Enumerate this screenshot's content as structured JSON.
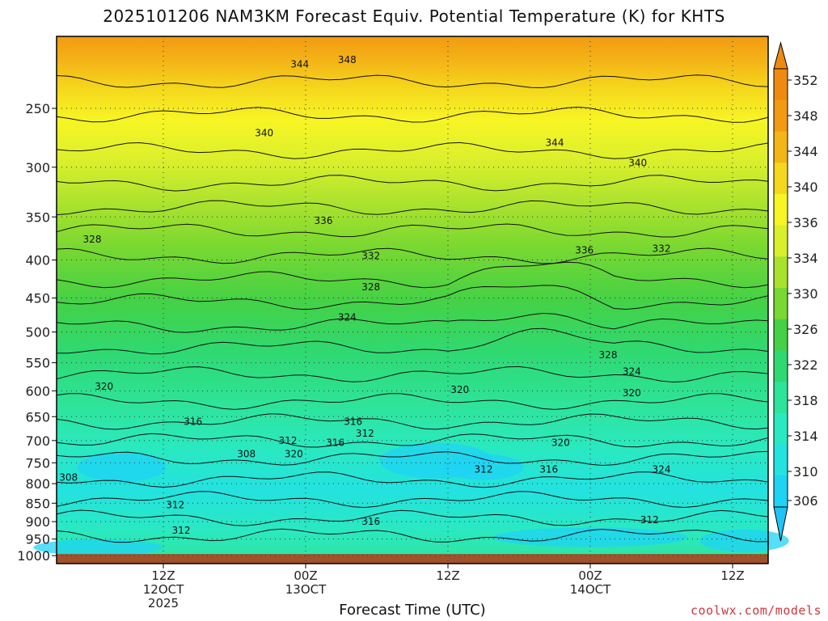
{
  "chart_data": {
    "type": "heatmap",
    "title": "2025101206 NAM3KM Forecast Equiv. Potential Temperature (K) for KHTS",
    "xlabel": "Forecast Time (UTC)",
    "ylabel": "",
    "credit": "coolwx.com/models",
    "y_axis": {
      "unit": "hPa",
      "scale": "log",
      "range": [
        1025,
        200
      ],
      "ticks": [
        250,
        300,
        350,
        400,
        450,
        500,
        550,
        600,
        650,
        700,
        750,
        800,
        850,
        900,
        950,
        1000
      ]
    },
    "x_axis": {
      "unit": "forecast hour",
      "range": [
        -3,
        57
      ],
      "ticks": [
        {
          "hour": 6,
          "lines": [
            "12Z",
            "12OCT",
            "2025"
          ]
        },
        {
          "hour": 18,
          "lines": [
            "00Z",
            "13OCT"
          ]
        },
        {
          "hour": 30,
          "lines": [
            "12Z"
          ]
        },
        {
          "hour": 42,
          "lines": [
            "00Z",
            "14OCT"
          ]
        },
        {
          "hour": 54,
          "lines": [
            "12Z"
          ]
        }
      ]
    },
    "grid": true,
    "colorbar": {
      "ticks": [
        306,
        310,
        314,
        318,
        322,
        326,
        330,
        334,
        336,
        340,
        344,
        348,
        352
      ],
      "colors": [
        "#1fd3f5",
        "#23e2e0",
        "#2ae9c0",
        "#2ee49a",
        "#2fd972",
        "#45d145",
        "#79d831",
        "#a9e22e",
        "#d9ef2c",
        "#f7f524",
        "#f5d81d",
        "#f4b617",
        "#f29a12",
        "#ef8a10"
      ]
    },
    "contour_labels": [
      {
        "value": "348",
        "hour": 21.5,
        "p": 215
      },
      {
        "value": "344",
        "hour": 17.5,
        "p": 218
      },
      {
        "value": "340",
        "hour": 14.5,
        "p": 270
      },
      {
        "value": "344",
        "hour": 39.0,
        "p": 278
      },
      {
        "value": "340",
        "hour": 46.0,
        "p": 296
      },
      {
        "value": "336",
        "hour": 19.5,
        "p": 354
      },
      {
        "value": "328",
        "hour": 0.0,
        "p": 375
      },
      {
        "value": "336",
        "hour": 41.5,
        "p": 388
      },
      {
        "value": "332",
        "hour": 48.0,
        "p": 386
      },
      {
        "value": "332",
        "hour": 23.5,
        "p": 395
      },
      {
        "value": "328",
        "hour": 23.5,
        "p": 435
      },
      {
        "value": "324",
        "hour": 21.5,
        "p": 478
      },
      {
        "value": "328",
        "hour": 43.5,
        "p": 537
      },
      {
        "value": "324",
        "hour": 45.5,
        "p": 565
      },
      {
        "value": "320",
        "hour": 1.0,
        "p": 592
      },
      {
        "value": "320",
        "hour": 31.0,
        "p": 598
      },
      {
        "value": "320",
        "hour": 45.5,
        "p": 604
      },
      {
        "value": "316",
        "hour": 8.5,
        "p": 660
      },
      {
        "value": "316",
        "hour": 22.0,
        "p": 660
      },
      {
        "value": "312",
        "hour": 16.5,
        "p": 700
      },
      {
        "value": "312",
        "hour": 23.0,
        "p": 685
      },
      {
        "value": "316",
        "hour": 20.5,
        "p": 705
      },
      {
        "value": "320",
        "hour": 39.5,
        "p": 705
      },
      {
        "value": "308",
        "hour": 13.0,
        "p": 730
      },
      {
        "value": "320",
        "hour": 17.0,
        "p": 730
      },
      {
        "value": "312",
        "hour": 33.0,
        "p": 765
      },
      {
        "value": "316",
        "hour": 38.5,
        "p": 765
      },
      {
        "value": "324",
        "hour": 48.0,
        "p": 765
      },
      {
        "value": "308",
        "hour": -2.0,
        "p": 785
      },
      {
        "value": "312",
        "hour": 7.0,
        "p": 855
      },
      {
        "value": "316",
        "hour": 23.5,
        "p": 900
      },
      {
        "value": "312",
        "hour": 47.0,
        "p": 895
      },
      {
        "value": "312",
        "hour": 7.5,
        "p": 925
      }
    ]
  }
}
